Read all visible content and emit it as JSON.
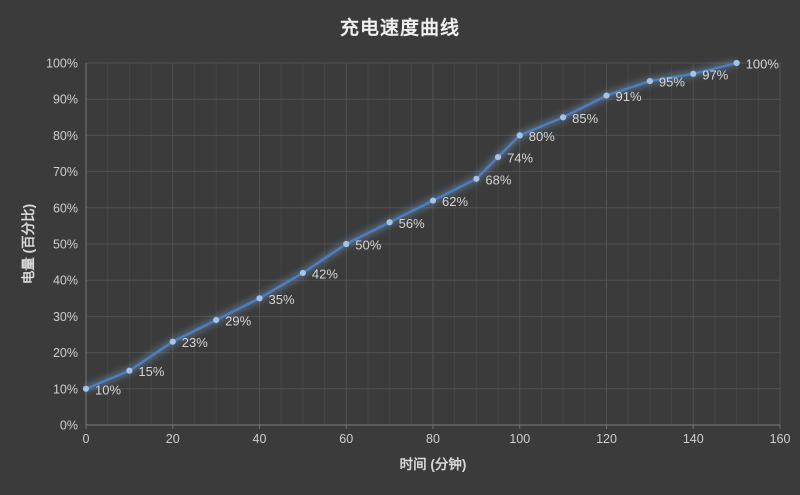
{
  "chart_data": {
    "type": "line",
    "title": "充电速度曲线",
    "xlabel": "时间 (分钟)",
    "ylabel": "电量 (百分比)",
    "x": [
      0,
      10,
      20,
      30,
      40,
      50,
      60,
      70,
      80,
      90,
      95,
      100,
      110,
      120,
      130,
      140,
      150
    ],
    "values": [
      10,
      15,
      23,
      29,
      35,
      42,
      50,
      56,
      62,
      68,
      74,
      80,
      85,
      91,
      95,
      97,
      100
    ],
    "point_labels": [
      "10%",
      "15%",
      "23%",
      "29%",
      "35%",
      "42%",
      "50%",
      "56%",
      "62%",
      "68%",
      "74%",
      "80%",
      "85%",
      "91%",
      "95%",
      "97%",
      "100%"
    ],
    "xlim": [
      0,
      160
    ],
    "ylim": [
      0,
      100
    ],
    "x_ticks": [
      0,
      20,
      40,
      60,
      80,
      100,
      120,
      140,
      160
    ],
    "x_minor_step": 5,
    "x_major_step": 20,
    "y_tick_step": 10,
    "y_tick_suffix": "%",
    "grid": true,
    "legend": "none",
    "colors": {
      "background": "#3b3b3b",
      "line": "#4d7ebf",
      "line_glow": "#7fb0e8",
      "marker": "#a3c4e8",
      "grid_major": "#525252",
      "grid_minor": "#464646",
      "axis": "#6f6f6f",
      "tick_text": "#cfcfcf",
      "data_label_text": "#d6d6d6",
      "title_text": "#efefef",
      "axis_title_text": "#d9d9d9"
    }
  }
}
